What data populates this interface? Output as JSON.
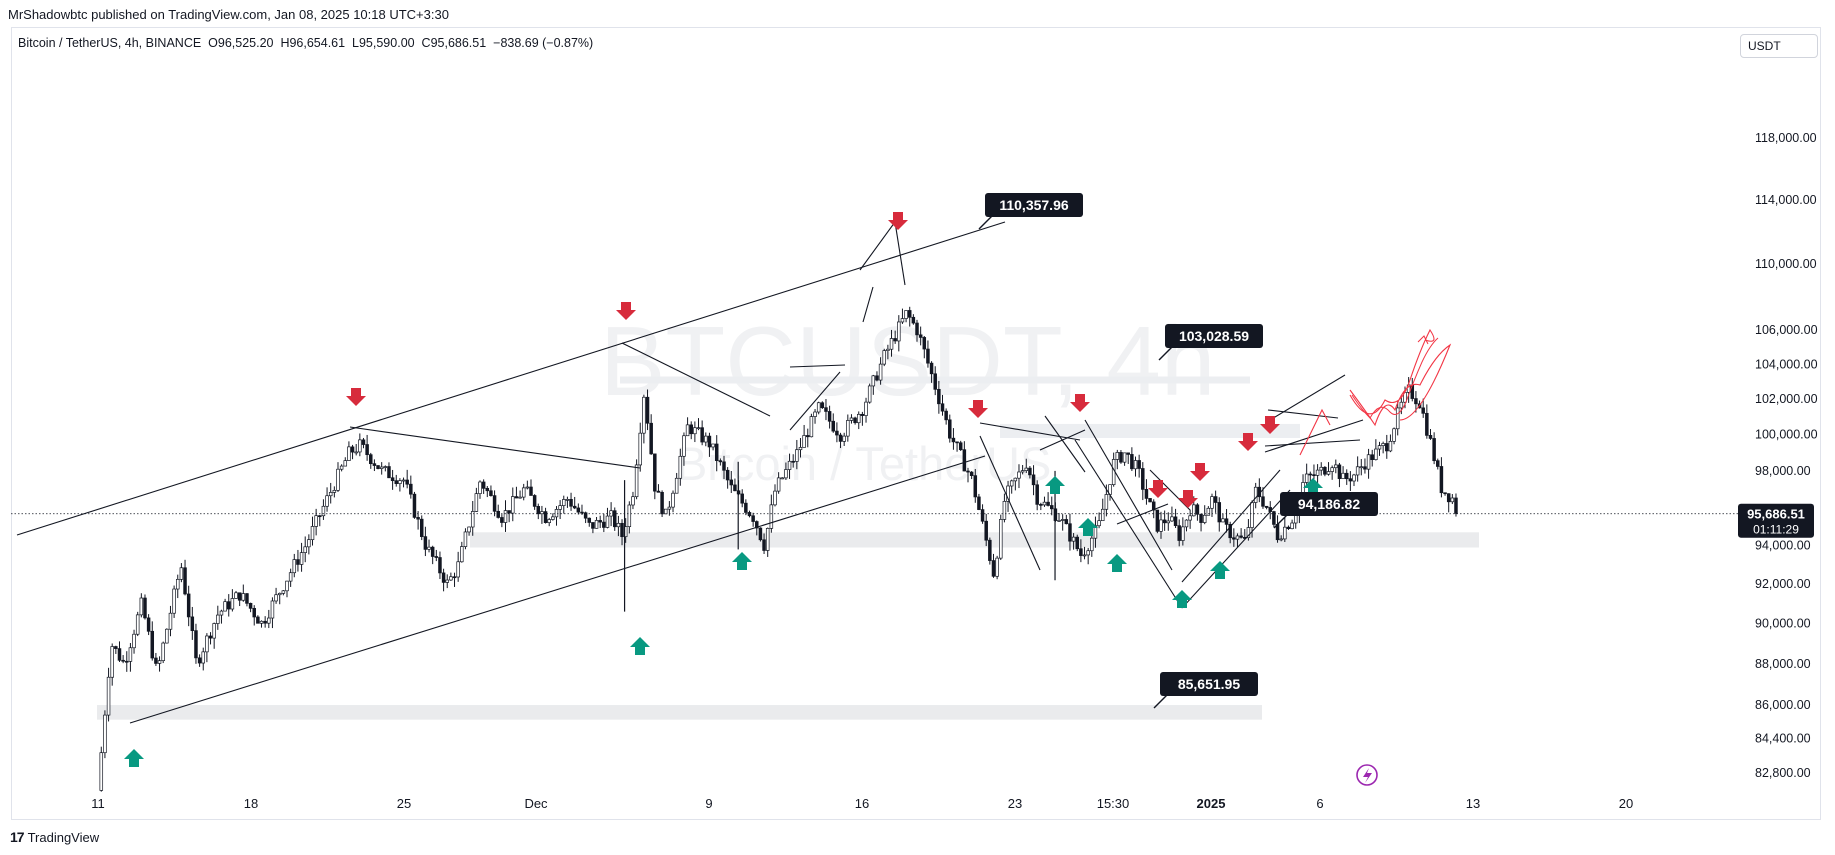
{
  "header": {
    "published": "MrShadowbtc published on TradingView.com, Jan 08, 2025 10:18 UTC+3:30",
    "symbol_line": "Bitcoin / TetherUS, 4h, BINANCE",
    "open": "O96,525.20",
    "high": "H96,654.61",
    "low": "L95,590.00",
    "close": "C95,686.51",
    "change": "−838.69 (−0.87%)"
  },
  "currency": "USDT",
  "watermark": {
    "symbol": "BTCUSDT, 4h",
    "name": "Bitcoin / TetherUS"
  },
  "footer": {
    "brand": "TradingView"
  },
  "colors": {
    "up_arrow": "#089981",
    "down_arrow": "#d72b3c",
    "candle_up": "#ffffff",
    "candle_down": "#131722",
    "projection": "#f23645",
    "zone": "#e6e7ea"
  },
  "price_badge": {
    "price": "95,686.51",
    "countdown": "01:11:29"
  },
  "chart_data": {
    "type": "candlestick",
    "timeframe": "4h",
    "x_ticks": [
      "11",
      "18",
      "25",
      "Dec",
      "9",
      "16",
      "23",
      "15:30",
      "2025",
      "6",
      "13",
      "20"
    ],
    "y_ticks": [
      "118,000.00",
      "114,000.00",
      "110,000.00",
      "106,000.00",
      "104,000.00",
      "102,000.00",
      "100,000.00",
      "98,000.00",
      "94,000.00",
      "92,000.00",
      "90,000.00",
      "88,000.00",
      "86,000.00",
      "84,400.00",
      "82,800.00"
    ],
    "y_scale": "log",
    "last_price": 95686.51,
    "annotations": [
      {
        "label": "110,357.96",
        "price": 110357.96
      },
      {
        "label": "103,028.59",
        "price": 103028.59
      },
      {
        "label": "94,186.82",
        "price": 94186.82
      },
      {
        "label": "85,651.95",
        "price": 85651.95
      }
    ],
    "support_zones": [
      {
        "low": 93900,
        "high": 94700
      },
      {
        "low": 85300,
        "high": 86000
      }
    ],
    "arrows": {
      "down": [
        "Nov 22",
        "Dec 4",
        "Dec 17",
        "Dec 20",
        "Dec 26",
        "Dec 29",
        "Dec 30",
        "Dec 31",
        "Jan 2",
        "Jan 3"
      ],
      "up": [
        "Nov 12",
        "Dec 4",
        "Dec 10",
        "Dec 25",
        "Dec 27",
        "Dec 28",
        "Dec 31",
        "Jan 1",
        "Jan 5"
      ]
    }
  }
}
